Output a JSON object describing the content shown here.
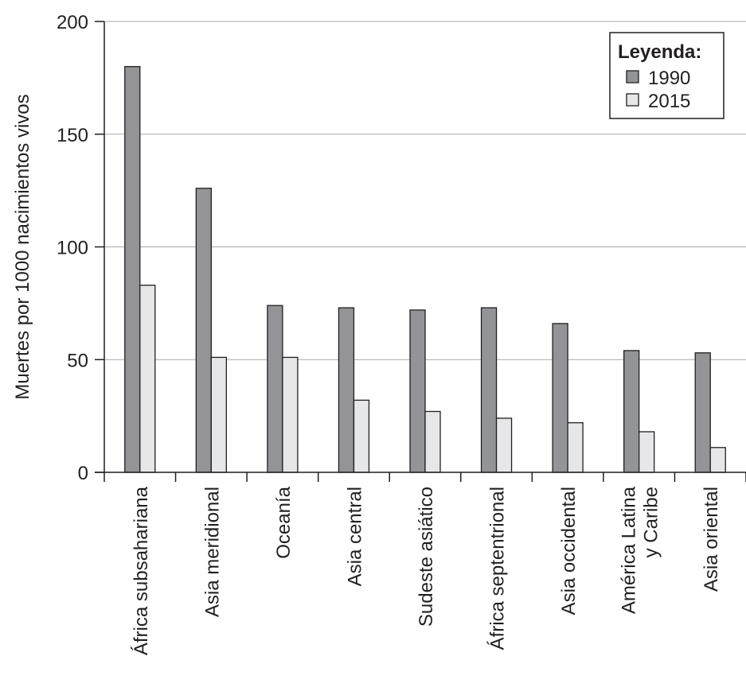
{
  "chart_data": {
    "type": "bar",
    "ylabel": "Muertes por 1000 nacimientos vivos",
    "xlabel": "",
    "ylim": [
      0,
      200
    ],
    "yticks": [
      0,
      50,
      100,
      150,
      200
    ],
    "grid": true,
    "legend_position": "top-right",
    "legend_title": "Leyenda:",
    "categories": [
      [
        "África subsahariana"
      ],
      [
        "Asia meridional"
      ],
      [
        "Oceanía"
      ],
      [
        "Asia central"
      ],
      [
        "Sudeste asiático"
      ],
      [
        "África septentrional"
      ],
      [
        "Asia occidental"
      ],
      [
        "América Latina",
        "y Caribe"
      ],
      [
        "Asia oriental"
      ]
    ],
    "series": [
      {
        "name": "1990",
        "color": "#929497",
        "values": [
          180,
          126,
          74,
          73,
          72,
          73,
          66,
          54,
          53
        ]
      },
      {
        "name": "2015",
        "color": "#e6e7e8",
        "values": [
          83,
          51,
          51,
          32,
          27,
          24,
          22,
          18,
          11
        ]
      }
    ]
  }
}
